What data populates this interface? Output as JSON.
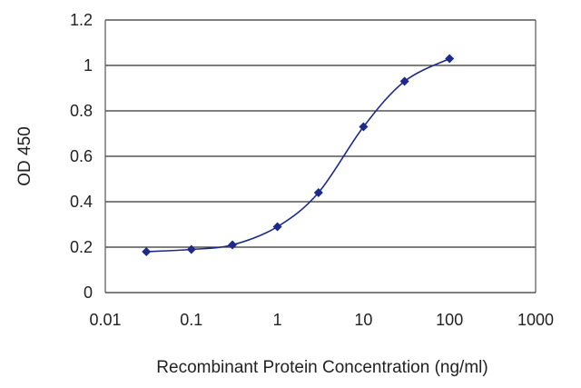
{
  "chart_data": {
    "type": "scatter",
    "title": "",
    "xlabel": "Recombinant Protein Concentration (ng/ml)",
    "ylabel": "OD 450",
    "x_scale": "log",
    "xlim": [
      0.01,
      1000
    ],
    "ylim": [
      0,
      1.2
    ],
    "x_tick_labels": [
      "0.01",
      "0.1",
      "1",
      "10",
      "100",
      "1000"
    ],
    "y_tick_labels": [
      "0",
      "0.2",
      "0.4",
      "0.6",
      "0.8",
      "1",
      "1.2"
    ],
    "grid": "horizontal",
    "legend": "none",
    "series": [
      {
        "x": [
          0.03,
          0.1,
          0.3,
          1,
          3,
          10,
          30,
          100
        ],
        "y": [
          0.18,
          0.19,
          0.21,
          0.29,
          0.44,
          0.73,
          0.93,
          1.03
        ],
        "marker": "diamond",
        "fit_line": true
      }
    ],
    "colors": {
      "series": "#1c2a8c",
      "grid": "#333333",
      "axis": "#555555"
    }
  }
}
